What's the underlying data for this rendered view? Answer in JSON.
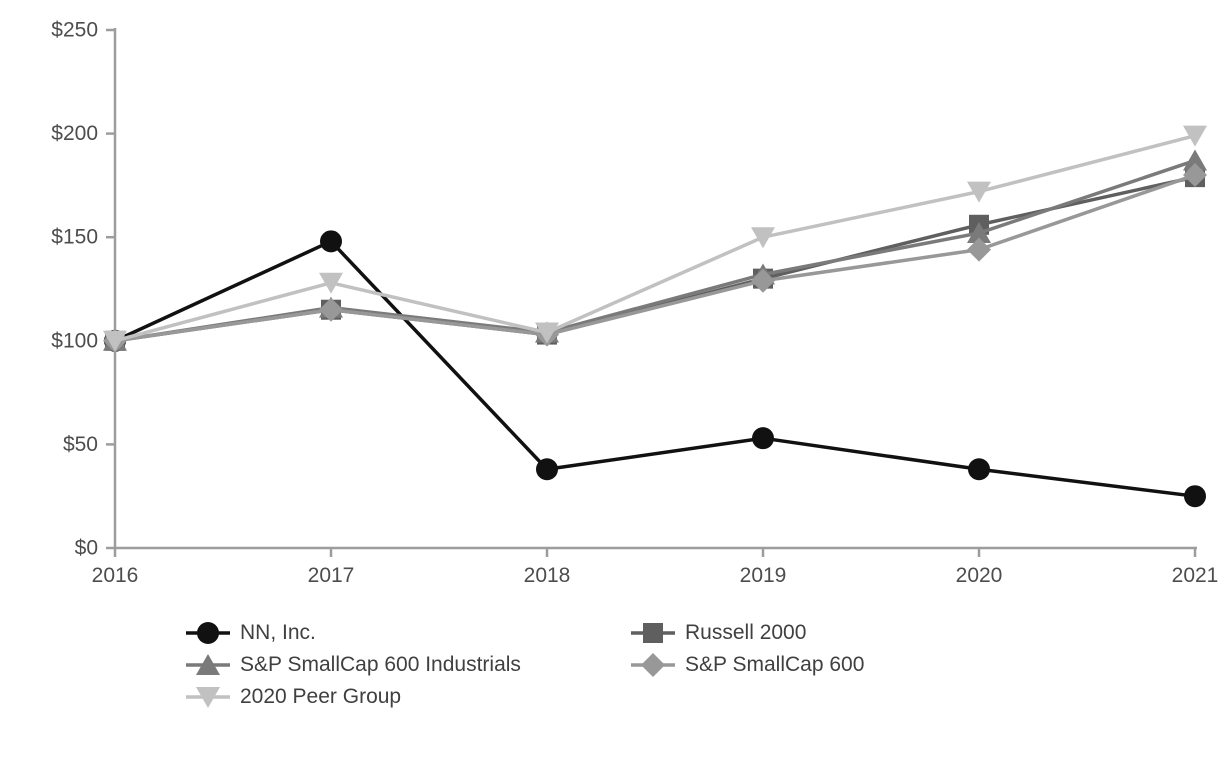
{
  "chart_data": {
    "type": "line",
    "title": "",
    "x_tick_labels": [
      "2016",
      "2017",
      "2018",
      "2019",
      "2020",
      "2021"
    ],
    "y_tick_labels": [
      "$0",
      "$50",
      "$100",
      "$150",
      "$200",
      "$250"
    ],
    "y_tick_values": [
      0,
      50,
      100,
      150,
      200,
      250
    ],
    "ylim": [
      0,
      250
    ],
    "grid": false,
    "legend_position": "bottom",
    "axis_color": "#9d9d9d",
    "tick_label_color": "#4d4d4d",
    "series": [
      {
        "name": "NN, Inc.",
        "marker": "circle",
        "color": "#111111",
        "values": [
          100,
          148,
          38,
          53,
          38,
          25
        ]
      },
      {
        "name": "Russell 2000",
        "marker": "square",
        "color": "#5f5f5f",
        "values": [
          100,
          115,
          103,
          130,
          156,
          179
        ]
      },
      {
        "name": "S&P SmallCap 600 Industrials",
        "marker": "triangle-up",
        "color": "#7a7a7a",
        "values": [
          100,
          116,
          104,
          132,
          152,
          187
        ]
      },
      {
        "name": "S&P SmallCap 600",
        "marker": "diamond",
        "color": "#989898",
        "values": [
          100,
          115,
          103,
          129,
          144,
          180
        ]
      },
      {
        "name": "2020 Peer Group",
        "marker": "triangle-down",
        "color": "#c1c1c1",
        "values": [
          100,
          128,
          104,
          150,
          172,
          199
        ]
      }
    ]
  }
}
